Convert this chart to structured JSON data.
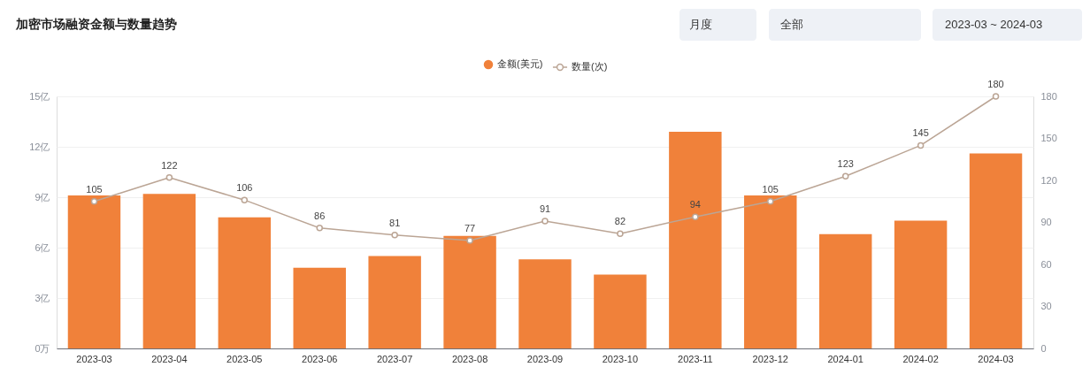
{
  "chart_data": {
    "type": "bar",
    "title": "加密市场融资金额与数量趋势",
    "categories": [
      "2023-03",
      "2023-04",
      "2023-05",
      "2023-06",
      "2023-07",
      "2023-08",
      "2023-09",
      "2023-10",
      "2023-11",
      "2023-12",
      "2024-01",
      "2024-02",
      "2024-03"
    ],
    "series": [
      {
        "name": "金额(美元)",
        "color": "#f0813a",
        "values": [
          9.1,
          9.2,
          7.8,
          4.8,
          5.5,
          6.7,
          5.3,
          4.4,
          12.9,
          9.1,
          6.8,
          7.6,
          11.6
        ]
      },
      {
        "name": "数量(次)",
        "type": "line",
        "axis": "y2",
        "color": "#bba595",
        "values": [
          105,
          122,
          106,
          86,
          81,
          77,
          91,
          82,
          94,
          105,
          123,
          145,
          180
        ],
        "value_labels": [
          "105",
          "122",
          "106",
          "86",
          "81",
          "77",
          "91",
          "82",
          "94",
          "105",
          "123",
          "145",
          "180"
        ]
      }
    ],
    "ylim": [
      0,
      15
    ],
    "yticks": [
      {
        "value": 0,
        "label": "0万"
      },
      {
        "value": 3,
        "label": "3亿"
      },
      {
        "value": 6,
        "label": "6亿"
      },
      {
        "value": 9,
        "label": "9亿"
      },
      {
        "value": 12,
        "label": "12亿"
      },
      {
        "value": 15,
        "label": "15亿"
      }
    ],
    "y2lim": [
      0,
      180
    ],
    "y2ticks": [
      0,
      30,
      60,
      90,
      120,
      150,
      180
    ],
    "grid": "y",
    "legend": "top",
    "marker": "circle",
    "annotations": [
      "月度",
      "全部",
      "2023-03 ~ 2024-03"
    ]
  }
}
